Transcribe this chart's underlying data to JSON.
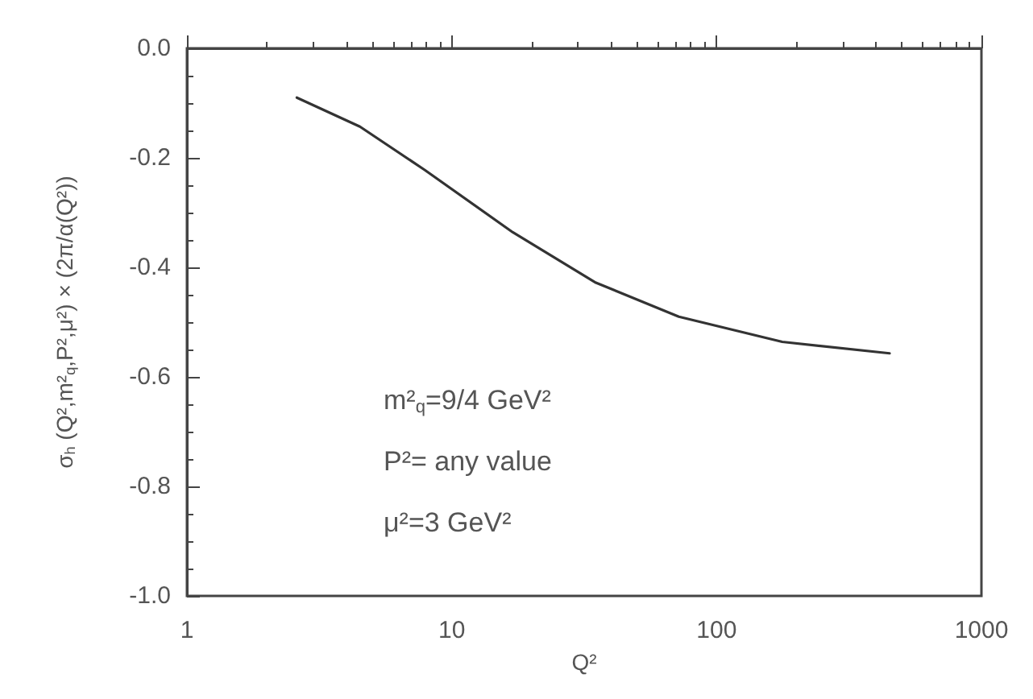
{
  "chart_data": {
    "type": "line",
    "xlabel": "Q²",
    "ylabel": "σ$_{h}$ (Q²,m²$_{q}$,P²,μ²) × (2π/α(Q²))",
    "x": [
      2.6,
      4.5,
      7.9,
      17,
      35,
      72,
      177,
      450
    ],
    "series": [
      {
        "color": "#333333",
        "values": [
          -0.09,
          -0.143,
          -0.222,
          -0.336,
          -0.428,
          -0.49,
          -0.536,
          -0.557
        ]
      }
    ],
    "xlim": [
      1,
      1000
    ],
    "xticks": [
      1,
      10,
      100,
      1000
    ],
    "log": "x",
    "ylim": [
      -1,
      0
    ],
    "yticks": [
      {
        "value": 0,
        "label": "0.0"
      },
      -0.2,
      -0.4,
      -0.6,
      -0.8,
      {
        "value": -1,
        "label": "-1.0"
      }
    ],
    "grid": false,
    "marker": "none",
    "line_style": "solid",
    "annotations": [
      "m²$_{q}$=9/4 GeV²",
      "P²= any value",
      "μ²=3 GeV²"
    ]
  }
}
